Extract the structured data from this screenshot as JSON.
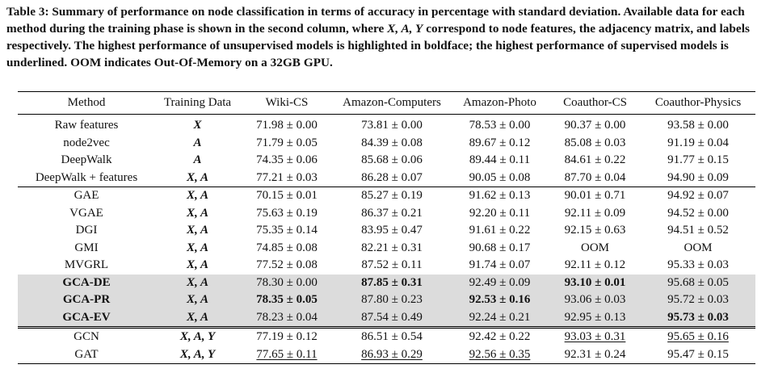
{
  "caption": [
    "Table 3: Summary of performance on node classification in terms of accuracy in percentage with standard deviation. Available data for each method during the training phase is shown in the second column, where ",
    "X, A, Y",
    " correspond to node features, the adjacency matrix, and labels respectively. The highest performance of unsupervised models is highlighted in boldface; the highest performance of supervised models is underlined. OOM indicates Out-Of-Memory on a 32GB GPU."
  ],
  "table": {
    "header": [
      "Method",
      "Training Data",
      "Wiki-CS",
      "Amazon-Computers",
      "Amazon-Photo",
      "Coauthor-CS",
      "Coauthor-Physics"
    ],
    "groups": [
      [
        {
          "cells": [
            "Raw features",
            "X",
            "71.98 ± 0.00",
            "73.81 ± 0.00",
            "78.53 ± 0.00",
            "90.37 ± 0.00",
            "93.58 ± 0.00"
          ]
        },
        {
          "cells": [
            "node2vec",
            "A",
            "71.79 ± 0.05",
            "84.39 ± 0.08",
            "89.67 ± 0.12",
            "85.08 ± 0.03",
            "91.19 ± 0.04"
          ]
        },
        {
          "cells": [
            "DeepWalk",
            "A",
            "74.35 ± 0.06",
            "85.68 ± 0.06",
            "89.44 ± 0.11",
            "84.61 ± 0.22",
            "91.77 ± 0.15"
          ]
        },
        {
          "cells": [
            "DeepWalk + features",
            "X, A",
            "77.21 ± 0.03",
            "86.28 ± 0.07",
            "90.05 ± 0.08",
            "87.70 ± 0.04",
            "94.90 ± 0.09"
          ]
        }
      ],
      [
        {
          "cells": [
            "GAE",
            "X, A",
            "70.15 ± 0.01",
            "85.27 ± 0.19",
            "91.62 ± 0.13",
            "90.01 ± 0.71",
            "94.92 ± 0.07"
          ]
        },
        {
          "cells": [
            "VGAE",
            "X, A",
            "75.63 ± 0.19",
            "86.37 ± 0.21",
            "92.20 ± 0.11",
            "92.11 ± 0.09",
            "94.52 ± 0.00"
          ]
        },
        {
          "cells": [
            "DGI",
            "X, A",
            "75.35 ± 0.14",
            "83.95 ± 0.47",
            "91.61 ± 0.22",
            "92.15 ± 0.63",
            "94.51 ± 0.52"
          ]
        },
        {
          "cells": [
            "GMI",
            "X, A",
            "74.85 ± 0.08",
            "82.21 ± 0.31",
            "90.68 ± 0.17",
            "OOM",
            "OOM"
          ]
        },
        {
          "cells": [
            "MVGRL",
            "X, A",
            "77.52 ± 0.08",
            "87.52 ± 0.11",
            "91.74 ± 0.07",
            "92.11 ± 0.12",
            "95.33 ± 0.03"
          ]
        },
        {
          "highlight": true,
          "cells": [
            "GCA-DE",
            "X, A",
            "78.30 ± 0.00",
            {
              "text": "87.85 ± 0.31",
              "bold": true
            },
            "92.49 ± 0.09",
            {
              "text": "93.10 ± 0.01",
              "bold": true
            },
            "95.68 ± 0.05"
          ]
        },
        {
          "highlight": true,
          "cells": [
            "GCA-PR",
            "X, A",
            {
              "text": "78.35 ± 0.05",
              "bold": true
            },
            "87.80 ± 0.23",
            {
              "text": "92.53 ± 0.16",
              "bold": true
            },
            "93.06 ± 0.03",
            "95.72 ± 0.03"
          ]
        },
        {
          "highlight": true,
          "cells": [
            "GCA-EV",
            "X, A",
            "78.23 ± 0.04",
            "87.54 ± 0.49",
            "92.24 ± 0.21",
            "92.95 ± 0.13",
            {
              "text": "95.73 ± 0.03",
              "bold": true
            }
          ]
        }
      ],
      [
        {
          "cells": [
            "GCN",
            "X, A, Y",
            "77.19 ± 0.12",
            "86.51 ± 0.54",
            "92.42 ± 0.22",
            {
              "text": "93.03 ± 0.31",
              "underline": true
            },
            {
              "text": "95.65 ± 0.16",
              "underline": true
            }
          ]
        },
        {
          "cells": [
            "GAT",
            "X, A, Y",
            {
              "text": "77.65 ± 0.11",
              "underline": true
            },
            {
              "text": "86.93 ± 0.29",
              "underline": true
            },
            {
              "text": "92.56 ± 0.35",
              "underline": true
            },
            "92.31 ± 0.24",
            "95.47 ± 0.15"
          ]
        }
      ]
    ]
  }
}
